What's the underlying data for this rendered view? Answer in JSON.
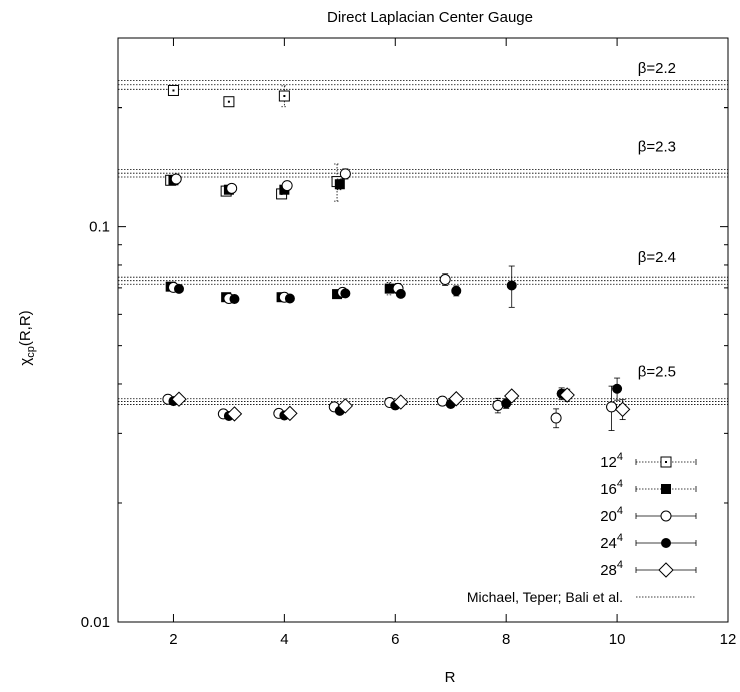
{
  "chart_data": {
    "type": "scatter",
    "title": "Direct Laplacian Center Gauge",
    "xlabel": "R",
    "ylabel": "χcp(R,R)",
    "ylabel_main": "χ",
    "ylabel_sub": "cp",
    "ylabel_rest": "(R,R)",
    "xlim": [
      1,
      12
    ],
    "ylim": [
      0.01,
      0.3
    ],
    "yscale": "log",
    "grid": false,
    "legend_position": "bottom-right",
    "x_ticks": [
      "2",
      "4",
      "6",
      "8",
      "10",
      "12"
    ],
    "y_ticks": [
      {
        "value": 0.1,
        "label": "0.1"
      },
      {
        "value": 0.01,
        "label": "0.01"
      }
    ],
    "beta_labels": [
      {
        "text": "β=2.2",
        "y": 0.245
      },
      {
        "text": "β=2.3",
        "y": 0.155
      },
      {
        "text": "β=2.4",
        "y": 0.0815
      },
      {
        "text": "β=2.5",
        "y": 0.0418
      }
    ],
    "reference_bands": [
      {
        "beta": "2.2",
        "values": [
          0.2225,
          0.2285,
          0.234
        ]
      },
      {
        "beta": "2.3",
        "values": [
          0.1335,
          0.1365,
          0.1395
        ]
      },
      {
        "beta": "2.4",
        "values": [
          0.0715,
          0.073,
          0.0745
        ]
      },
      {
        "beta": "2.5",
        "values": [
          0.0355,
          0.0361,
          0.0367
        ]
      }
    ],
    "series": [
      {
        "name": "12⁴",
        "label_base": "12",
        "label_sup": "4",
        "marker": "open-square",
        "line": "dotted",
        "points": [
          {
            "x": 2.0,
            "y": 0.221,
            "err": 0.004
          },
          {
            "x": 3.0,
            "y": 0.207,
            "err": 0.004
          },
          {
            "x": 4.0,
            "y": 0.214,
            "err": 0.013
          },
          {
            "x": 1.95,
            "y": 0.131,
            "err": 0.002
          },
          {
            "x": 2.95,
            "y": 0.123,
            "err": 0.002
          },
          {
            "x": 3.95,
            "y": 0.121,
            "err": 0.002
          },
          {
            "x": 4.95,
            "y": 0.13,
            "err": 0.014
          }
        ]
      },
      {
        "name": "16⁴",
        "label_base": "16",
        "label_sup": "4",
        "marker": "filled-square",
        "line": "dotted",
        "points": [
          {
            "x": 2.0,
            "y": 0.131,
            "err": 0.002
          },
          {
            "x": 3.0,
            "y": 0.124,
            "err": 0.002
          },
          {
            "x": 4.0,
            "y": 0.124,
            "err": 0.002
          },
          {
            "x": 5.0,
            "y": 0.128,
            "err": 0.004
          },
          {
            "x": 1.95,
            "y": 0.0705,
            "err": 0.001
          },
          {
            "x": 2.95,
            "y": 0.0663,
            "err": 0.001
          },
          {
            "x": 3.95,
            "y": 0.0663,
            "err": 0.001
          },
          {
            "x": 4.95,
            "y": 0.0675,
            "err": 0.001
          },
          {
            "x": 5.9,
            "y": 0.0697,
            "err": 0.0025
          }
        ]
      },
      {
        "name": "20⁴",
        "label_base": "20",
        "label_sup": "4",
        "marker": "open-circle",
        "line": "solid",
        "points": [
          {
            "x": 2.05,
            "y": 0.132,
            "err": 0.002
          },
          {
            "x": 3.05,
            "y": 0.125,
            "err": 0.002
          },
          {
            "x": 4.05,
            "y": 0.127,
            "err": 0.002
          },
          {
            "x": 5.1,
            "y": 0.136,
            "err": 0.004
          },
          {
            "x": 2.0,
            "y": 0.0702,
            "err": 0.001
          },
          {
            "x": 3.0,
            "y": 0.0658,
            "err": 0.001
          },
          {
            "x": 4.0,
            "y": 0.0663,
            "err": 0.001
          },
          {
            "x": 5.05,
            "y": 0.0682,
            "err": 0.0012
          },
          {
            "x": 6.05,
            "y": 0.0698,
            "err": 0.002
          },
          {
            "x": 6.9,
            "y": 0.0735,
            "err": 0.0025
          },
          {
            "x": 1.9,
            "y": 0.0366,
            "err": 0.0004
          },
          {
            "x": 2.9,
            "y": 0.0336,
            "err": 0.0004
          },
          {
            "x": 3.9,
            "y": 0.0337,
            "err": 0.0004
          },
          {
            "x": 4.9,
            "y": 0.035,
            "err": 0.0005
          },
          {
            "x": 5.9,
            "y": 0.0359,
            "err": 0.0006
          },
          {
            "x": 6.85,
            "y": 0.0362,
            "err": 0.0007
          },
          {
            "x": 7.85,
            "y": 0.0353,
            "err": 0.0015
          },
          {
            "x": 8.9,
            "y": 0.0328,
            "err": 0.0018
          },
          {
            "x": 9.9,
            "y": 0.035,
            "err": 0.0045
          }
        ]
      },
      {
        "name": "24⁴",
        "label_base": "24",
        "label_sup": "4",
        "marker": "filled-circle",
        "line": "solid",
        "points": [
          {
            "x": 2.1,
            "y": 0.0696,
            "err": 0.001
          },
          {
            "x": 3.1,
            "y": 0.0656,
            "err": 0.001
          },
          {
            "x": 4.1,
            "y": 0.0658,
            "err": 0.001
          },
          {
            "x": 5.1,
            "y": 0.0678,
            "err": 0.001
          },
          {
            "x": 6.1,
            "y": 0.0676,
            "err": 0.0012
          },
          {
            "x": 7.1,
            "y": 0.0688,
            "err": 0.002
          },
          {
            "x": 8.1,
            "y": 0.071,
            "err": 0.0085
          },
          {
            "x": 2.0,
            "y": 0.0362,
            "err": 0.0004
          },
          {
            "x": 3.0,
            "y": 0.0332,
            "err": 0.0004
          },
          {
            "x": 4.0,
            "y": 0.0333,
            "err": 0.0004
          },
          {
            "x": 5.0,
            "y": 0.0342,
            "err": 0.0005
          },
          {
            "x": 6.0,
            "y": 0.0353,
            "err": 0.0006
          },
          {
            "x": 7.0,
            "y": 0.0356,
            "err": 0.0007
          },
          {
            "x": 8.0,
            "y": 0.0357,
            "err": 0.001
          },
          {
            "x": 9.0,
            "y": 0.0378,
            "err": 0.0013
          },
          {
            "x": 10.0,
            "y": 0.0389,
            "err": 0.0025
          }
        ]
      },
      {
        "name": "28⁴",
        "label_base": "28",
        "label_sup": "4",
        "marker": "open-diamond",
        "line": "solid",
        "points": [
          {
            "x": 2.1,
            "y": 0.0366,
            "err": 0.0004
          },
          {
            "x": 3.1,
            "y": 0.0336,
            "err": 0.0004
          },
          {
            "x": 4.1,
            "y": 0.0337,
            "err": 0.0004
          },
          {
            "x": 5.1,
            "y": 0.0352,
            "err": 0.0005
          },
          {
            "x": 6.1,
            "y": 0.036,
            "err": 0.0006
          },
          {
            "x": 7.1,
            "y": 0.0367,
            "err": 0.0007
          },
          {
            "x": 8.1,
            "y": 0.0373,
            "err": 0.001
          },
          {
            "x": 9.1,
            "y": 0.0375,
            "err": 0.0013
          },
          {
            "x": 10.1,
            "y": 0.0345,
            "err": 0.002
          }
        ]
      }
    ],
    "reference_legend": "Michael, Teper; Bali et al."
  }
}
